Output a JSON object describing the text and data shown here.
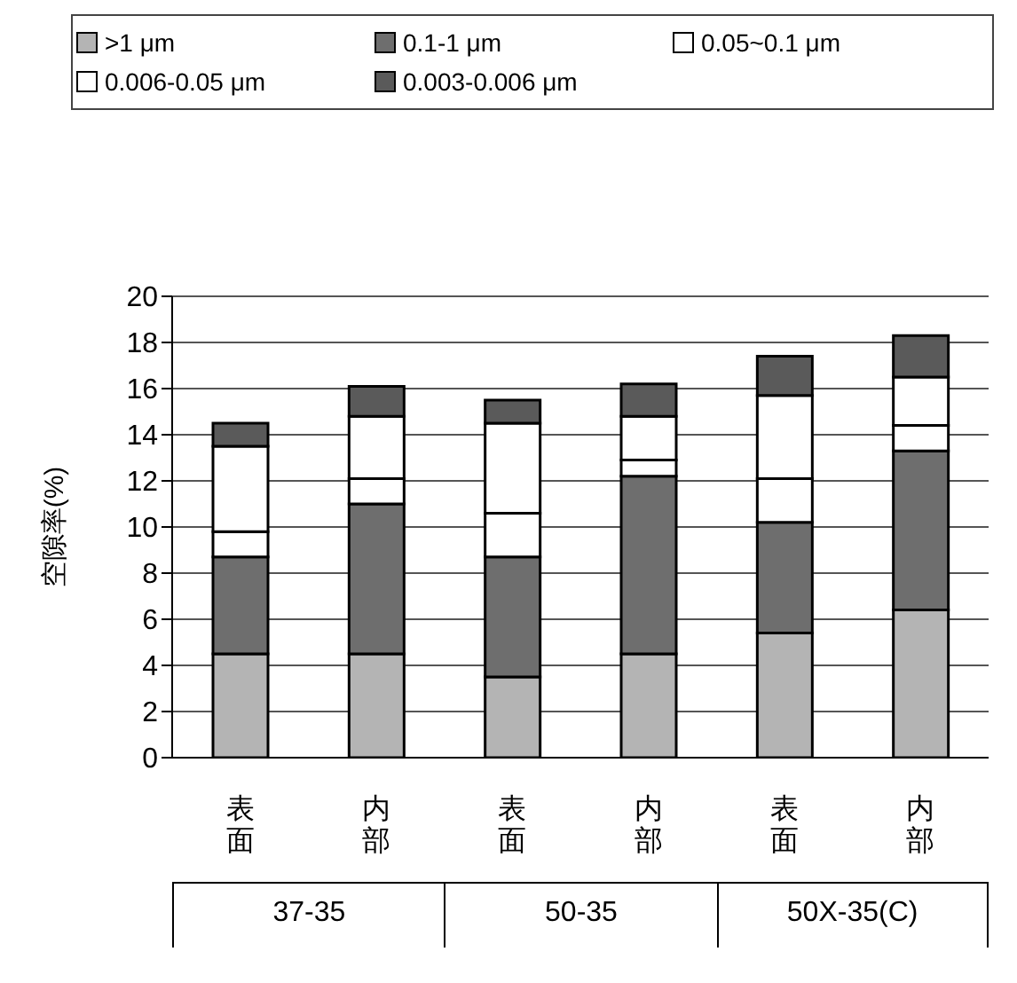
{
  "chart_data": {
    "type": "bar",
    "stacked": true,
    "ylabel": "空隙率(%)",
    "categories": [
      "表面",
      "内部",
      "表面",
      "内部",
      "表面",
      "内部"
    ],
    "annotations": [
      "37-35",
      "50-35",
      "50X-35(C)"
    ],
    "series": [
      {
        "name": ">1 μm",
        "color": "#b4b4b4",
        "values": [
          4.5,
          4.5,
          3.5,
          4.5,
          5.4,
          6.4
        ]
      },
      {
        "name": "0.1-1 μm",
        "color": "#6e6e6e",
        "values": [
          4.2,
          6.5,
          5.2,
          7.7,
          4.8,
          6.9
        ]
      },
      {
        "name": "0.05~0.1 μm",
        "color": "#ffffff",
        "values": [
          1.1,
          1.1,
          1.9,
          0.7,
          1.9,
          1.1
        ]
      },
      {
        "name": "0.006-0.05 μm",
        "color": "#ffffff",
        "values": [
          3.7,
          2.7,
          3.9,
          1.9,
          3.6,
          2.1
        ]
      },
      {
        "name": "0.003-0.006 μm",
        "color": "#5a5a5a",
        "values": [
          1.0,
          1.3,
          1.0,
          1.4,
          1.7,
          1.8
        ]
      }
    ],
    "ylim": [
      0,
      20
    ],
    "yticks": [
      0,
      2,
      4,
      6,
      8,
      10,
      12,
      14,
      16,
      18,
      20
    ],
    "grid": "y",
    "legend": "top"
  }
}
